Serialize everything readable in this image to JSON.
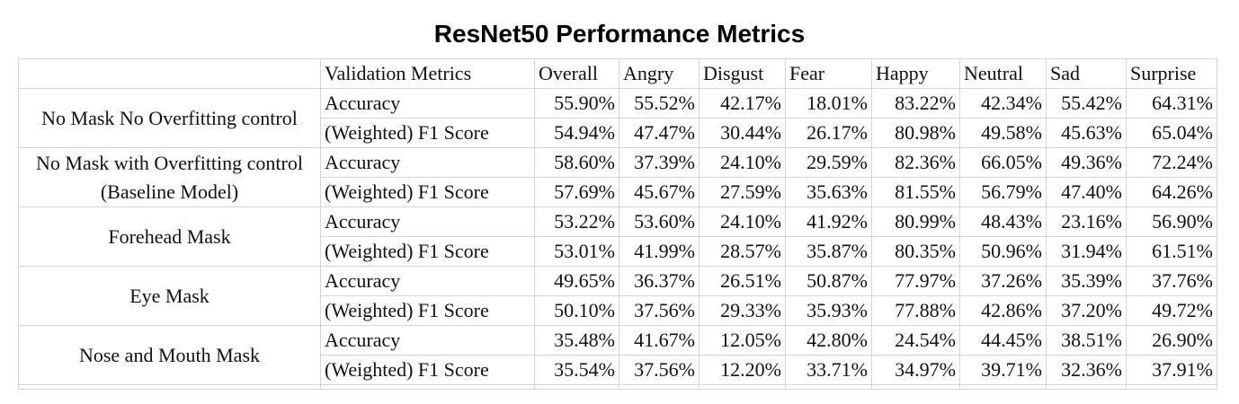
{
  "chart_data": {
    "type": "table",
    "title": "ResNet50 Performance Metrics",
    "columns": [
      "",
      "Validation Metrics",
      "Overall",
      "Angry",
      "Disgust",
      "Fear",
      "Happy",
      "Neutral",
      "Sad",
      "Surprise"
    ],
    "groups": [
      {
        "condition": [
          "No Mask No Overfitting control"
        ],
        "rows": [
          {
            "metric": "Accuracy",
            "values": [
              "55.90%",
              "55.52%",
              "42.17%",
              "18.01%",
              "83.22%",
              "42.34%",
              "55.42%",
              "64.31%"
            ]
          },
          {
            "metric": "(Weighted) F1 Score",
            "values": [
              "54.94%",
              "47.47%",
              "30.44%",
              "26.17%",
              "80.98%",
              "49.58%",
              "45.63%",
              "65.04%"
            ]
          }
        ]
      },
      {
        "condition": [
          "No Mask with Overfitting control",
          "(Baseline Model)"
        ],
        "rows": [
          {
            "metric": "Accuracy",
            "values": [
              "58.60%",
              "37.39%",
              "24.10%",
              "29.59%",
              "82.36%",
              "66.05%",
              "49.36%",
              "72.24%"
            ]
          },
          {
            "metric": "(Weighted) F1 Score",
            "values": [
              "57.69%",
              "45.67%",
              "27.59%",
              "35.63%",
              "81.55%",
              "56.79%",
              "47.40%",
              "64.26%"
            ]
          }
        ]
      },
      {
        "condition": [
          "Forehead Mask"
        ],
        "rows": [
          {
            "metric": "Accuracy",
            "values": [
              "53.22%",
              "53.60%",
              "24.10%",
              "41.92%",
              "80.99%",
              "48.43%",
              "23.16%",
              "56.90%"
            ]
          },
          {
            "metric": "(Weighted) F1 Score",
            "values": [
              "53.01%",
              "41.99%",
              "28.57%",
              "35.87%",
              "80.35%",
              "50.96%",
              "31.94%",
              "61.51%"
            ]
          }
        ]
      },
      {
        "condition": [
          "Eye Mask"
        ],
        "rows": [
          {
            "metric": "Accuracy",
            "values": [
              "49.65%",
              "36.37%",
              "26.51%",
              "50.87%",
              "77.97%",
              "37.26%",
              "35.39%",
              "37.76%"
            ]
          },
          {
            "metric": "(Weighted) F1 Score",
            "values": [
              "50.10%",
              "37.56%",
              "29.33%",
              "35.93%",
              "77.88%",
              "42.86%",
              "37.20%",
              "49.72%"
            ]
          }
        ]
      },
      {
        "condition": [
          "Nose and Mouth Mask"
        ],
        "rows": [
          {
            "metric": "Accuracy",
            "values": [
              "35.48%",
              "41.67%",
              "12.05%",
              "42.80%",
              "24.54%",
              "44.45%",
              "38.51%",
              "26.90%"
            ]
          },
          {
            "metric": "(Weighted) F1 Score",
            "values": [
              "35.54%",
              "37.56%",
              "12.20%",
              "33.71%",
              "34.97%",
              "39.71%",
              "32.36%",
              "37.91%"
            ]
          }
        ]
      }
    ]
  }
}
